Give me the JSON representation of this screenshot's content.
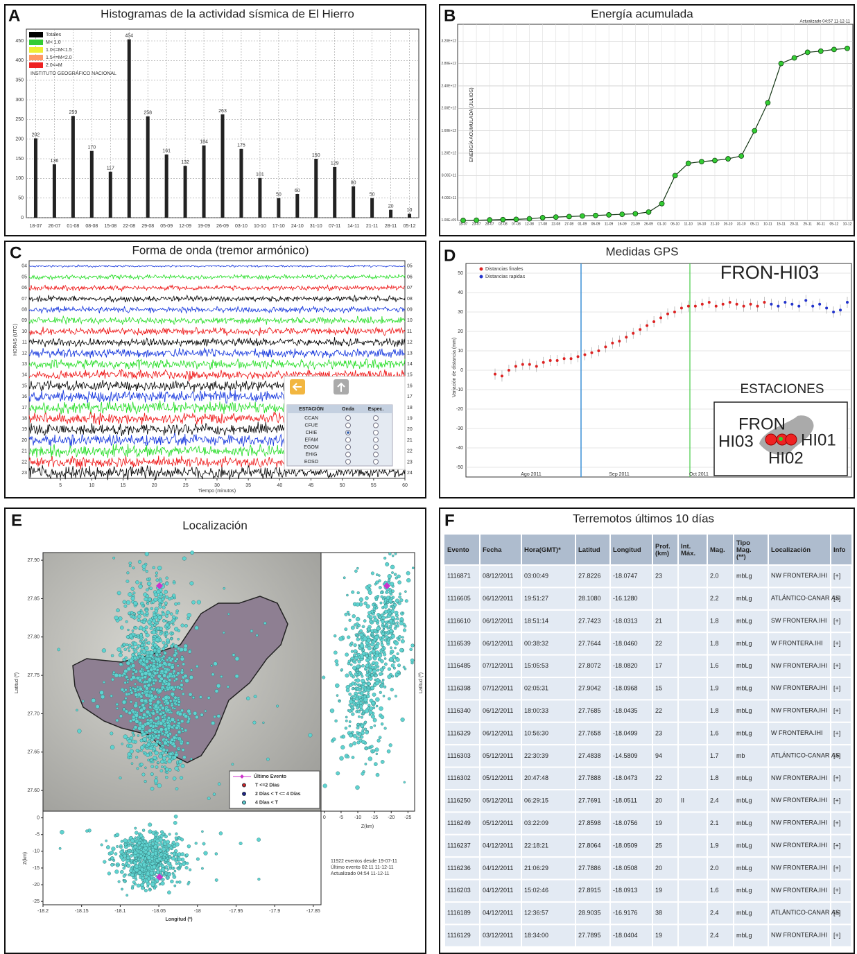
{
  "panel_a": {
    "letter": "A",
    "type": "bar",
    "title": "Histogramas de la actividad sísmica de El Hierro",
    "legend": [
      {
        "name": "Totales",
        "color": "#000000"
      },
      {
        "name": "M< 1.0",
        "color": "#33cc33"
      },
      {
        "name": "1.0<=M<1.5",
        "color": "#eeee33"
      },
      {
        "name": "1.5<=M<2.0",
        "color": "#ff9966"
      },
      {
        "name": "2.0<=M",
        "color": "#ee2222"
      }
    ],
    "watermark": "INSTITUTO GEOGRÁFICO NACIONAL",
    "categories": [
      "18-07",
      "26-07",
      "01-08",
      "08-08",
      "15-08",
      "22-08",
      "29-08",
      "05-09",
      "12-09",
      "19-09",
      "26-09",
      "03-10",
      "10-10",
      "17-10",
      "24-10",
      "31-10",
      "07-11",
      "14-11",
      "21-11",
      "28-11",
      "05-12"
    ],
    "values": [
      202,
      136,
      259,
      170,
      117,
      454,
      258,
      161,
      132,
      184,
      263,
      175,
      101,
      50,
      60,
      150,
      129,
      80,
      50,
      20,
      10
    ],
    "color": "#222222",
    "ylim": [
      0,
      480
    ],
    "yticks": [
      0,
      50,
      100,
      150,
      200,
      250,
      300,
      350,
      400,
      450
    ],
    "grid": true
  },
  "panel_b": {
    "letter": "B",
    "type": "scatter",
    "title": "Energía acumulada",
    "y_label": "ENERGÍA ACUMULADA (JULIOS)",
    "updated": "Actualizado 04:57 11-12-11",
    "categories": [
      "18-07",
      "23-07",
      "28-07",
      "02-08",
      "07-08",
      "12-08",
      "17-08",
      "22-08",
      "27-08",
      "01-09",
      "06-09",
      "11-09",
      "16-09",
      "21-09",
      "26-09",
      "01-10",
      "06-10",
      "11-10",
      "16-10",
      "21-10",
      "26-10",
      "31-10",
      "05-11",
      "10-11",
      "15-11",
      "20-11",
      "25-11",
      "30-11",
      "05-12",
      "10-12"
    ],
    "values": [
      1000000000.0,
      5000000000.0,
      10000000000.0,
      15000000000.0,
      20000000000.0,
      30000000000.0,
      50000000000.0,
      60000000000.0,
      70000000000.0,
      80000000000.0,
      90000000000.0,
      100000000000.0,
      110000000000.0,
      120000000000.0,
      150000000000.0,
      300000000000.0,
      800000000000.0,
      1020000000000.0,
      1050000000000.0,
      1070000000000.0,
      1100000000000.0,
      1150000000000.0,
      1600000000000.0,
      2100000000000.0,
      2800000000000.0,
      2900000000000.0,
      3000000000000.0,
      3020000000000.0,
      3050000000000.0,
      3070000000000.0
    ],
    "color": "#33cc33",
    "ylim": [
      0,
      3500000000000.0
    ],
    "yticks": [
      {
        "value": 1000000000.0,
        "label": "1.00E+09"
      },
      {
        "value": 400000000000.0,
        "label": "4.00E+11"
      },
      {
        "value": 800000000000.0,
        "label": "8.00E+11"
      },
      {
        "value": 1200000000000.0,
        "label": "1.20E+12"
      },
      {
        "value": 1600000000000.0,
        "label": "1.60E+12"
      },
      {
        "value": 2000000000000.0,
        "label": "2.00E+12"
      },
      {
        "value": 2400000000000.0,
        "label": "2.40E+12"
      },
      {
        "value": 2800000000000.0,
        "label": "2.80E+12"
      },
      {
        "value": 3200000000000.0,
        "label": "3.20E+12"
      }
    ],
    "grid": true
  },
  "panel_c": {
    "letter": "C",
    "title": "Forma de onda (tremor armónico)",
    "y_label": "HORAS (UTC)",
    "x_label": "Tiempo (minutos)",
    "hours_left": [
      "04",
      "05",
      "06",
      "07",
      "08",
      "09",
      "10",
      "11",
      "12",
      "13",
      "14",
      "15",
      "16",
      "17",
      "18",
      "19",
      "20",
      "21",
      "22",
      "23"
    ],
    "hours_right": [
      "05",
      "06",
      "07",
      "08",
      "09",
      "10",
      "11",
      "12",
      "13",
      "14",
      "15",
      "16",
      "17",
      "18",
      "19",
      "20",
      "21",
      "22",
      "23",
      "24"
    ],
    "xlim": [
      0,
      60
    ],
    "xticks": [
      5,
      10,
      15,
      20,
      25,
      30,
      35,
      40,
      45,
      50,
      55,
      60
    ],
    "selector": {
      "header": [
        "ESTACIÓN",
        "Onda",
        "Espec."
      ],
      "stations": [
        "CCAN",
        "CFUE",
        "CHIE",
        "EFAM",
        "EGOM",
        "EHIG",
        "EOSO"
      ]
    }
  },
  "panel_d": {
    "letter": "D",
    "type": "scatter",
    "title": "Medidas GPS",
    "station": "FRON-HI03",
    "y_label": "Variación de distancia (mm)",
    "series": [
      {
        "name": "Distancias finales",
        "color": "#dd2222",
        "values": [
          -2,
          -3,
          0,
          2,
          3,
          3,
          2,
          4,
          5,
          5,
          6,
          6,
          7,
          8,
          9,
          10,
          12,
          14,
          15,
          17,
          19,
          21,
          23,
          25,
          27,
          29,
          30,
          32,
          33,
          33,
          34,
          35,
          33,
          34,
          35,
          34,
          33,
          34,
          33,
          35,
          null,
          null,
          null,
          null,
          null,
          null,
          null,
          null,
          null,
          null,
          null,
          null
        ]
      },
      {
        "name": "Distancias rapidas",
        "color": "#2233cc",
        "values": [
          null,
          null,
          null,
          null,
          null,
          null,
          null,
          null,
          null,
          null,
          null,
          null,
          null,
          null,
          null,
          null,
          null,
          null,
          null,
          null,
          null,
          null,
          null,
          null,
          null,
          null,
          null,
          null,
          null,
          null,
          null,
          null,
          null,
          null,
          null,
          null,
          null,
          null,
          null,
          null,
          34,
          33,
          35,
          34,
          33,
          36,
          33,
          34,
          32,
          30,
          31,
          35
        ]
      }
    ],
    "months": [
      "Ago 2011",
      "Sep 2011",
      "Oct 2011"
    ],
    "ylim": [
      -55,
      55
    ],
    "yticks": [
      -50,
      -40,
      -30,
      -20,
      -10,
      0,
      10,
      20,
      30,
      40,
      50
    ],
    "grid": true,
    "inset": {
      "title": "ESTACIONES",
      "labels": [
        "FRON",
        "HI03",
        "HI01",
        "HI02"
      ]
    }
  },
  "panel_e": {
    "letter": "E",
    "title": "Localización",
    "lat_label": "Latitud (º)",
    "lon_label": "Longitud (º)",
    "z_label": "Z(km)",
    "latlim": [
      27.573,
      27.91
    ],
    "latticks": [
      {
        "value": 27.9,
        "label": "27.90"
      },
      27.85,
      {
        "value": 27.8,
        "label": "27.80"
      },
      27.75,
      {
        "value": 27.7,
        "label": "27.70"
      },
      27.65,
      {
        "value": 27.6,
        "label": "27.60"
      }
    ],
    "lonlim": [
      -18.2,
      -17.84
    ],
    "lonticks": [
      -18.2,
      -18.15,
      -18.1,
      -18.05,
      -18,
      -17.95,
      -17.9,
      -17.85
    ],
    "zlim": [
      2,
      -26
    ],
    "zticks": [
      0,
      -5,
      -10,
      -15,
      -20,
      -25
    ],
    "z2lim": [
      1,
      -27
    ],
    "z2ticks": [
      0,
      -5,
      -10,
      -15,
      -20,
      -25
    ],
    "legend": [
      {
        "name": "Último Evento",
        "color": "#cc33cc"
      },
      {
        "name": "T <=2 Días",
        "color": "#cc2222"
      },
      {
        "name": "2 Días < T <= 4 Días",
        "color": "#222288"
      },
      {
        "name": "4 Días < T",
        "color": "#5fd3d0"
      }
    ],
    "notes": [
      "11922 eventos desde 19-07-11",
      "Último evento 02:11 11-12-11",
      "Actualizado 04:54 11-12-11"
    ]
  },
  "panel_f": {
    "letter": "F",
    "title": "Terremotos últimos 10 días",
    "header": [
      "Evento",
      "Fecha",
      "Hora(GMT)*",
      "Latitud",
      "Longitud",
      "Prof. (km)",
      "Int. Máx.",
      "Mag.",
      "Tipo Mag. (**)",
      "Localización",
      "Info"
    ],
    "rows": [
      [
        "1116871",
        "08/12/2011",
        "03:00:49",
        "27.8226",
        "-18.0747",
        "23",
        null,
        "2.0",
        "mbLg",
        "NW FRONTERA.IHI",
        "[+]"
      ],
      [
        "1116605",
        "06/12/2011",
        "19:51:27",
        "28.1080",
        "-16.1280",
        null,
        null,
        "2.2",
        "mbLg",
        "ATLÁNTICO-CANARIAS",
        "[+]"
      ],
      [
        "1116610",
        "06/12/2011",
        "18:51:14",
        "27.7423",
        "-18.0313",
        "21",
        null,
        "1.8",
        "mbLg",
        "SW FRONTERA.IHI",
        "[+]"
      ],
      [
        "1116539",
        "06/12/2011",
        "00:38:32",
        "27.7644",
        "-18.0460",
        "22",
        null,
        "1.8",
        "mbLg",
        "W FRONTERA.IHI",
        "[+]"
      ],
      [
        "1116485",
        "07/12/2011",
        "15:05:53",
        "27.8072",
        "-18.0820",
        "17",
        null,
        "1.6",
        "mbLg",
        "NW FRONTERA.IHI",
        "[+]"
      ],
      [
        "1116398",
        "07/12/2011",
        "02:05:31",
        "27.9042",
        "-18.0968",
        "15",
        null,
        "1.9",
        "mbLg",
        "NW FRONTERA.IHI",
        "[+]"
      ],
      [
        "1116340",
        "06/12/2011",
        "18:00:33",
        "27.7685",
        "-18.0435",
        "22",
        null,
        "1.8",
        "mbLg",
        "NW FRONTERA.IHI",
        "[+]"
      ],
      [
        "1116329",
        "06/12/2011",
        "10:56:30",
        "27.7658",
        "-18.0499",
        "23",
        null,
        "1.6",
        "mbLg",
        "W FRONTERA.IHI",
        "[+]"
      ],
      [
        "1116303",
        "05/12/2011",
        "22:30:39",
        "27.4838",
        "-14.5809",
        "94",
        null,
        "1.7",
        "mb",
        "ATLÁNTICO-CANARIAS",
        "[+]"
      ],
      [
        "1116302",
        "05/12/2011",
        "20:47:48",
        "27.7888",
        "-18.0473",
        "22",
        null,
        "1.8",
        "mbLg",
        "NW FRONTERA.IHI",
        "[+]"
      ],
      [
        "1116250",
        "05/12/2011",
        "06:29:15",
        "27.7691",
        "-18.0511",
        "20",
        "II",
        "2.4",
        "mbLg",
        "NW FRONTERA.IHI",
        "[+]"
      ],
      [
        "1116249",
        "05/12/2011",
        "03:22:09",
        "27.8598",
        "-18.0756",
        "19",
        null,
        "2.1",
        "mbLg",
        "NW FRONTERA.IHI",
        "[+]"
      ],
      [
        "1116237",
        "04/12/2011",
        "22:18:21",
        "27.8064",
        "-18.0509",
        "25",
        null,
        "1.9",
        "mbLg",
        "NW FRONTERA.IHI",
        "[+]"
      ],
      [
        "1116236",
        "04/12/2011",
        "21:06:29",
        "27.7886",
        "-18.0508",
        "20",
        null,
        "2.0",
        "mbLg",
        "NW FRONTERA.IHI",
        "[+]"
      ],
      [
        "1116203",
        "04/12/2011",
        "15:02:46",
        "27.8915",
        "-18.0913",
        "19",
        null,
        "1.6",
        "mbLg",
        "NW FRONTERA.IHI",
        "[+]"
      ],
      [
        "1116189",
        "04/12/2011",
        "12:36:57",
        "28.9035",
        "-16.9176",
        "38",
        null,
        "2.4",
        "mbLg",
        "ATLÁNTICO-CANARIAS",
        "[+]"
      ],
      [
        "1116129",
        "03/12/2011",
        "18:34:00",
        "27.7895",
        "-18.0404",
        "19",
        null,
        "2.4",
        "mbLg",
        "NW FRONTERA.IHI",
        "[+]"
      ]
    ]
  }
}
